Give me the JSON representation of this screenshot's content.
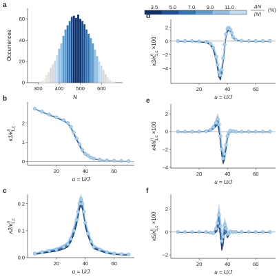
{
  "colors": {
    "shades": [
      "#0d2f6b",
      "#1b4f93",
      "#2f74b5",
      "#5a9bd0",
      "#8fbde3",
      "#c3dbef"
    ],
    "marker": "#a9cfea",
    "marker_edge": "#6ea6d4",
    "hist_grey": [
      "#d9d9d9",
      "#e4e4e4",
      "#eeeeee"
    ],
    "zero_line": "#888888"
  },
  "legend": {
    "ticks": [
      "3.5",
      "5.0",
      "7.0",
      "9.0",
      "11.0"
    ],
    "title_num": "ΔN",
    "title_den": "⟨N⟩",
    "unit": "(%)"
  },
  "chart_data": [
    {
      "id": "a",
      "type": "bar",
      "label": "a",
      "xlabel": "N",
      "ylabel": "Occurrences",
      "xlim": [
        250,
        700
      ],
      "ylim": [
        0,
        70
      ],
      "xticks": [
        "300",
        "400",
        "500",
        "600"
      ],
      "yticks": [
        "0",
        "20",
        "40",
        "60"
      ],
      "bin_width": 10,
      "bins_x": [
        310,
        320,
        330,
        340,
        350,
        360,
        370,
        380,
        390,
        400,
        410,
        420,
        430,
        440,
        450,
        460,
        470,
        480,
        490,
        500,
        510,
        520,
        530,
        540,
        550,
        560,
        570,
        580,
        590,
        600,
        610,
        620,
        630,
        640,
        650,
        660
      ],
      "bins_y": [
        1,
        2,
        4,
        7,
        10,
        14,
        17,
        21,
        26,
        32,
        37,
        44,
        50,
        54,
        58,
        62,
        63,
        61,
        64,
        60,
        58,
        55,
        50,
        46,
        42,
        37,
        31,
        25,
        20,
        16,
        12,
        8,
        5,
        3,
        2,
        1
      ],
      "bins_shade": [
        8,
        8,
        8,
        7,
        7,
        6,
        6,
        5,
        5,
        4,
        4,
        3,
        3,
        2,
        2,
        1,
        0,
        0,
        0,
        0,
        1,
        1,
        2,
        2,
        3,
        3,
        4,
        4,
        5,
        5,
        6,
        6,
        7,
        7,
        8,
        8
      ]
    },
    {
      "id": "b",
      "type": "line",
      "label": "b",
      "xlabel": "u = U/J",
      "ylabel_main": "κ1/κ",
      "ylabel_sup": "η",
      "ylabel_sub": "1,c",
      "xlim": [
        0,
        74
      ],
      "ylim": [
        -0.2,
        3.1
      ],
      "xticks": [
        "20",
        "40",
        "60"
      ],
      "yticks": [
        "0",
        "1",
        "2"
      ],
      "zero_line": 0,
      "x": [
        5,
        10,
        15,
        20,
        25,
        28,
        30,
        32,
        34,
        36,
        38,
        40,
        42,
        44,
        46,
        50,
        55,
        60,
        65,
        70
      ],
      "y": [
        2.75,
        2.6,
        2.45,
        2.3,
        2.15,
        2.0,
        1.8,
        1.5,
        1.2,
        0.9,
        0.6,
        0.4,
        0.3,
        0.2,
        0.15,
        0.1,
        0.06,
        0.04,
        0.03,
        0.02
      ],
      "spread": [
        0.02,
        0.02,
        0.03,
        0.03,
        0.03,
        0.04,
        0.05,
        0.07,
        0.08,
        0.08,
        0.07,
        0.05,
        0.04,
        0.03,
        0.02,
        0.02,
        0.01,
        0.01,
        0.01,
        0.01
      ]
    },
    {
      "id": "c",
      "type": "line",
      "label": "c",
      "xlabel": "u = U/J",
      "ylabel_main": "κ2/κ",
      "ylabel_sup": "η",
      "ylabel_sub": "1,c",
      "xlim": [
        0,
        74
      ],
      "ylim": [
        0,
        0.235
      ],
      "xticks": [
        "20",
        "40",
        "60"
      ],
      "yticks": [
        "0.0",
        "0.1",
        "0.2"
      ],
      "zero_line": null,
      "x": [
        5,
        10,
        15,
        20,
        25,
        28,
        30,
        32,
        34,
        35,
        36,
        37,
        38,
        39,
        40,
        42,
        44,
        46,
        50,
        55,
        60,
        65,
        70
      ],
      "y": [
        0.015,
        0.02,
        0.025,
        0.03,
        0.04,
        0.05,
        0.07,
        0.1,
        0.14,
        0.17,
        0.2,
        0.215,
        0.2,
        0.17,
        0.13,
        0.09,
        0.06,
        0.04,
        0.03,
        0.02,
        0.015,
        0.013,
        0.012
      ],
      "spread": [
        0.003,
        0.004,
        0.005,
        0.006,
        0.008,
        0.01,
        0.012,
        0.015,
        0.018,
        0.02,
        0.02,
        0.018,
        0.02,
        0.018,
        0.016,
        0.012,
        0.009,
        0.007,
        0.005,
        0.004,
        0.003,
        0.003,
        0.003
      ]
    },
    {
      "id": "d",
      "type": "line",
      "label": "d",
      "xlabel": "u = U/J",
      "ylabel_main": "κ3/κ",
      "ylabel_sup": "η",
      "ylabel_sub": "1,c",
      "ylabel_suffix": "×100",
      "xlim": [
        0,
        74
      ],
      "ylim": [
        -6.2,
        3.2
      ],
      "xticks": [
        "20",
        "40",
        "60"
      ],
      "yticks": [
        "-4",
        "-2",
        "0",
        "2"
      ],
      "zero_line": 0,
      "x": [
        5,
        10,
        15,
        20,
        25,
        28,
        30,
        32,
        33,
        34,
        35,
        36,
        37,
        38,
        39,
        40,
        41,
        42,
        43,
        44,
        46,
        50,
        55,
        60,
        65,
        70
      ],
      "y": [
        0.0,
        0.0,
        0.0,
        -0.05,
        -0.1,
        -0.4,
        -1.0,
        -2.3,
        -3.5,
        -4.6,
        -5.0,
        -4.2,
        -2.5,
        -0.5,
        1.0,
        1.8,
        1.9,
        1.7,
        1.2,
        0.6,
        0.2,
        0.05,
        0.0,
        0.0,
        0.0,
        0.0
      ],
      "spread": [
        0.05,
        0.05,
        0.05,
        0.08,
        0.1,
        0.2,
        0.3,
        0.5,
        0.6,
        0.7,
        0.7,
        0.7,
        0.6,
        0.5,
        0.4,
        0.4,
        0.3,
        0.3,
        0.3,
        0.2,
        0.1,
        0.05,
        0.05,
        0.05,
        0.05,
        0.05
      ]
    },
    {
      "id": "e",
      "type": "line",
      "label": "e",
      "xlabel": "u = U/J",
      "ylabel_main": "κ4/κ",
      "ylabel_sup": "η",
      "ylabel_sub": "1,c",
      "ylabel_suffix": "×100",
      "xlim": [
        0,
        74
      ],
      "ylim": [
        -4.1,
        3.1
      ],
      "xticks": [
        "20",
        "40",
        "60"
      ],
      "yticks": [
        "-4",
        "-2",
        "0",
        "2"
      ],
      "zero_line": 0,
      "x": [
        5,
        10,
        15,
        20,
        25,
        28,
        30,
        32,
        33,
        34,
        35,
        36,
        37,
        38,
        39,
        40,
        41,
        42,
        44,
        46,
        50,
        55,
        60,
        65,
        70
      ],
      "y": [
        0.0,
        0.0,
        0.0,
        0.0,
        0.05,
        0.2,
        0.5,
        1.0,
        1.4,
        0.8,
        -0.5,
        -2.0,
        -3.0,
        -2.5,
        -1.5,
        -0.5,
        -0.1,
        0.1,
        0.05,
        0.0,
        0.0,
        0.0,
        0.0,
        0.0,
        0.0
      ],
      "spread": [
        0.05,
        0.05,
        0.05,
        0.05,
        0.05,
        0.1,
        0.2,
        0.4,
        0.6,
        0.7,
        0.7,
        0.7,
        0.6,
        0.6,
        0.5,
        0.3,
        0.2,
        0.15,
        0.1,
        0.05,
        0.05,
        0.05,
        0.05,
        0.05,
        0.05
      ]
    },
    {
      "id": "f",
      "type": "line",
      "label": "f",
      "xlabel": "u = U/J",
      "ylabel_main": "κ5/κ",
      "ylabel_sup": "η",
      "ylabel_sub": "1,c",
      "ylabel_suffix": "×100",
      "xlim": [
        0,
        74
      ],
      "ylim": [
        -2.3,
        3.3
      ],
      "xticks": [
        "20",
        "40",
        "60"
      ],
      "yticks": [
        "-2",
        "0",
        "2"
      ],
      "zero_line": 0,
      "x": [
        5,
        10,
        15,
        20,
        25,
        28,
        30,
        32,
        33,
        34,
        35,
        36,
        37,
        38,
        39,
        40,
        41,
        42,
        44,
        46,
        50,
        55,
        60,
        65,
        70
      ],
      "y": [
        0.0,
        0.0,
        0.0,
        0.0,
        0.0,
        -0.05,
        -0.1,
        0.3,
        0.8,
        1.5,
        0.5,
        -0.8,
        -0.4,
        0.6,
        0.3,
        -0.2,
        -0.1,
        0.05,
        0.0,
        0.0,
        0.0,
        0.0,
        0.0,
        0.0,
        0.0
      ],
      "spread": [
        0.03,
        0.03,
        0.03,
        0.03,
        0.04,
        0.05,
        0.1,
        0.3,
        0.6,
        0.9,
        0.9,
        0.8,
        0.7,
        0.6,
        0.5,
        0.3,
        0.2,
        0.1,
        0.05,
        0.03,
        0.03,
        0.03,
        0.03,
        0.03,
        0.03
      ]
    }
  ]
}
